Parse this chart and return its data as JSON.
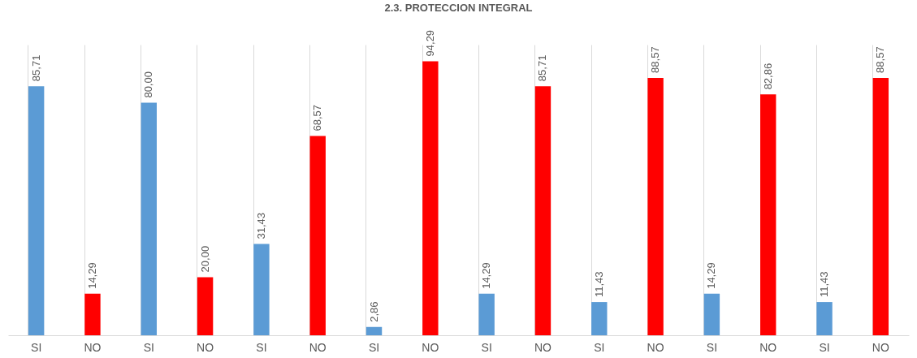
{
  "chart_data": {
    "type": "bar",
    "title": "2.3. PROTECCION INTEGRAL",
    "categories": [
      "SI",
      "NO",
      "SI",
      "NO",
      "SI",
      "NO",
      "SI",
      "NO",
      "SI",
      "NO",
      "SI",
      "NO",
      "SI",
      "NO",
      "SI",
      "NO"
    ],
    "values": [
      85.71,
      14.29,
      80.0,
      20.0,
      31.43,
      68.57,
      2.86,
      94.29,
      14.29,
      85.71,
      11.43,
      88.57,
      14.29,
      82.86,
      11.43,
      88.57
    ],
    "value_labels": [
      "85,71",
      "14,29",
      "80,00",
      "20,00",
      "31,43",
      "68,57",
      "2,86",
      "94,29",
      "14,29",
      "85,71",
      "11,43",
      "88,57",
      "14,29",
      "82,86",
      "11,43",
      "88,57"
    ],
    "colors": [
      "#5b9bd5",
      "#ff0000",
      "#5b9bd5",
      "#ff0000",
      "#5b9bd5",
      "#ff0000",
      "#5b9bd5",
      "#ff0000",
      "#5b9bd5",
      "#ff0000",
      "#5b9bd5",
      "#ff0000",
      "#5b9bd5",
      "#ff0000",
      "#5b9bd5",
      "#ff0000"
    ],
    "grid": "x",
    "tick_labels": "x"
  }
}
